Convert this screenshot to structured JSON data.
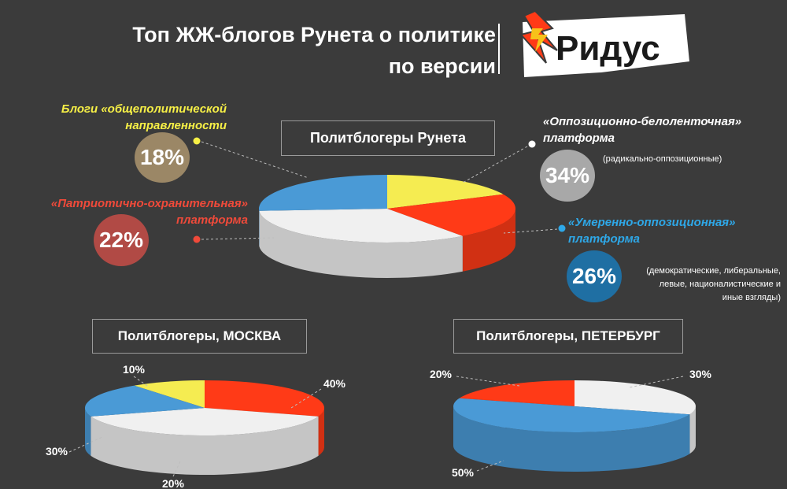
{
  "header": {
    "title_line1": "Топ ЖЖ-блогов Рунета о политике",
    "title_line2": "по версии",
    "logo_text": "Ридус"
  },
  "colors": {
    "background": "#3b3b3b",
    "general": "#f5ec51",
    "patriotic": "#ff3a17",
    "opposition": "#f0f0f0",
    "moderate": "#4a9ad6",
    "circle_general": "#9b8766",
    "circle_patriotic": "#b14a45",
    "circle_opposition": "#a8a8a8",
    "circle_moderate": "#1f6fa3",
    "label_yellow": "#f7f046",
    "label_red": "#f04a3a",
    "label_blue": "#2ea8e8"
  },
  "legend": {
    "general": {
      "line1": "Блоги «общеполитической",
      "line2": "направленности",
      "value": "18%"
    },
    "patriotic": {
      "line1": "«Патриотично-охранительная»",
      "line2": "платформа",
      "value": "22%"
    },
    "opposition": {
      "line1": "«Оппозиционно-белоленточная»",
      "line2": "платформа",
      "value": "34%",
      "note": "(радикально-оппозиционные)"
    },
    "moderate": {
      "line1": "«Умеренно-оппозиционная»",
      "line2": "платформа",
      "value": "26%",
      "note_lines": [
        "(демократические, либеральные,",
        "левые, националистические и",
        "иные взгляды)"
      ]
    }
  },
  "chart_data": [
    {
      "type": "pie",
      "title": "Политблогеры Рунета",
      "categories": [
        "общеполитической направленности",
        "Патриотично-охранительная",
        "Оппозиционно-белоленточная",
        "Умеренно-оппозиционная"
      ],
      "values": [
        18,
        22,
        34,
        26
      ],
      "value_labels": [
        "18%",
        "22%",
        "34%",
        "26%"
      ]
    },
    {
      "type": "pie",
      "title": "Политблогеры, МОСКВА",
      "categories": [
        "общеполитической направленности",
        "Патриотично-охранительная",
        "Оппозиционно-белоленточная",
        "Умеренно-оппозиционная"
      ],
      "values": [
        10,
        30,
        40,
        20
      ],
      "value_labels": [
        "10%",
        "30%",
        "40%",
        "20%"
      ]
    },
    {
      "type": "pie",
      "title": "Политблогеры, ПЕТЕРБУРГ",
      "categories": [
        "Патриотично-охранительная",
        "Оппозиционно-белоленточная",
        "Умеренно-оппозиционная"
      ],
      "values": [
        20,
        30,
        50
      ],
      "value_labels": [
        "20%",
        "30%",
        "50%"
      ]
    }
  ]
}
